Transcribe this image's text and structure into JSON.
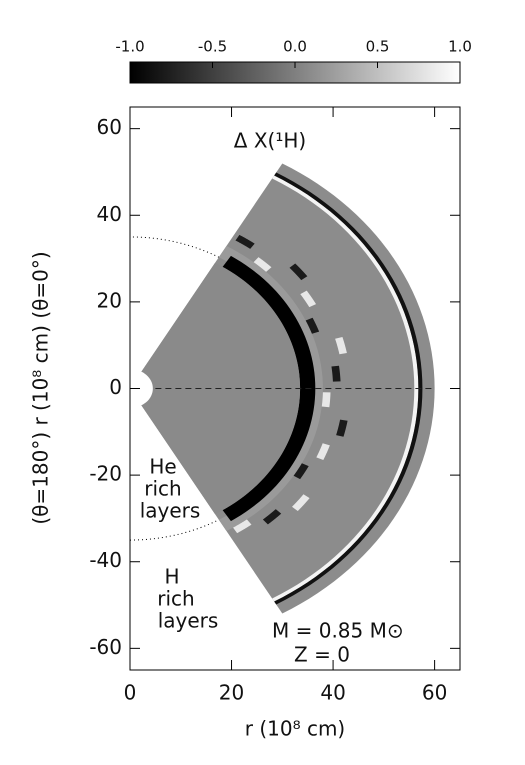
{
  "chart_data": {
    "type": "wedge",
    "title": "Δ X(¹H)",
    "xlabel": "r (10⁸ cm)",
    "ylabel": "(θ=180°) r (10⁸ cm) (θ=0°)",
    "xlim": [
      0,
      65
    ],
    "ylim": [
      -65,
      65
    ],
    "xticks": [
      0,
      20,
      40,
      60
    ],
    "yticks": [
      -60,
      -40,
      -20,
      0,
      20,
      40,
      60
    ],
    "colorbar": {
      "lim": [
        -1,
        1
      ],
      "ticks": [
        {
          "value": -1,
          "label": "-1.0"
        },
        {
          "value": -0.5,
          "label": "-0.5"
        },
        {
          "value": 0,
          "label": "0.0"
        },
        {
          "value": 0.5,
          "label": "0.5"
        },
        {
          "value": 1,
          "label": "1.0"
        }
      ],
      "colors": [
        "#000000",
        "#ffffff"
      ]
    },
    "annotations": {
      "he": [
        "He",
        "rich",
        "layers"
      ],
      "h": [
        "H",
        "rich",
        "layers"
      ],
      "mass": "M = 0.85 M⊙",
      "metallicity": "Z = 0"
    }
  }
}
